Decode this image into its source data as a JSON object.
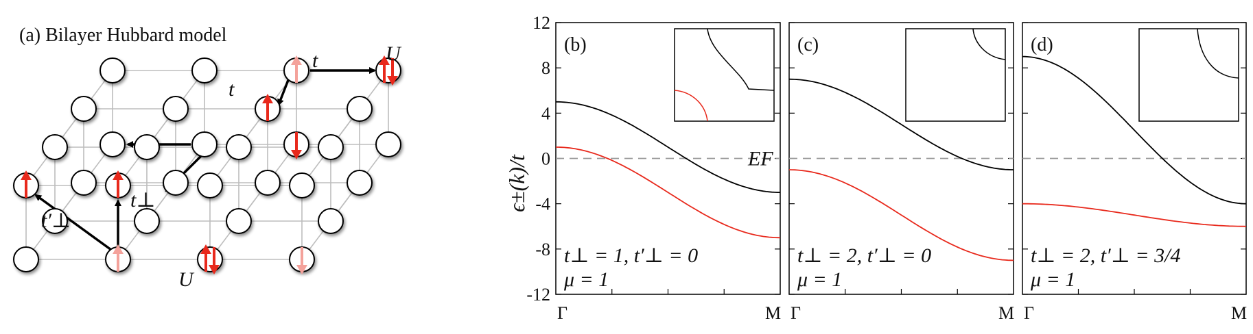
{
  "lattice": {
    "title": "(a) Bilayer Hubbard model",
    "labels": {
      "t_top": "t",
      "t_mid": "t",
      "U_top": "U",
      "U_bottom": "U",
      "t_perp": "t⊥",
      "t_perp_prime": "t′⊥"
    },
    "colors": {
      "spin": "#e8291c",
      "spin_faded": "#f4a29b",
      "hop_arrow": "#000000",
      "bond": "#bdbdbd"
    }
  },
  "chart_data": {
    "type": "line",
    "ylabel": "ϵ±(k)/t",
    "ylim": [
      -12,
      12
    ],
    "yticks": [
      "12",
      "8",
      "4",
      "0",
      "-4",
      "-8",
      "-12"
    ],
    "xticks": [
      "Γ",
      "M"
    ],
    "fermi_label": "EF",
    "fermi_level": 0,
    "colors": {
      "upper": "#000000",
      "lower": "#e8291c",
      "fermi": "#9a9a9a"
    },
    "panels": [
      {
        "label": "(b)",
        "params_line1": "t⊥ = 1, t′⊥ = 0",
        "params_line2": "μ = 1",
        "upper": {
          "start": 5,
          "end": -3
        },
        "lower": {
          "start": 1,
          "end": -7
        }
      },
      {
        "label": "(c)",
        "params_line1": "t⊥ = 2, t′⊥ = 0",
        "params_line2": "μ = 1",
        "upper": {
          "start": 7,
          "end": -1
        },
        "lower": {
          "start": -1,
          "end": -9
        }
      },
      {
        "label": "(d)",
        "params_line1": "t⊥ = 2, t′⊥ = 3/4",
        "params_line2": "μ = 1",
        "upper": {
          "start": 9,
          "end": -4
        },
        "lower": {
          "start": -4,
          "end": -6
        }
      }
    ]
  }
}
